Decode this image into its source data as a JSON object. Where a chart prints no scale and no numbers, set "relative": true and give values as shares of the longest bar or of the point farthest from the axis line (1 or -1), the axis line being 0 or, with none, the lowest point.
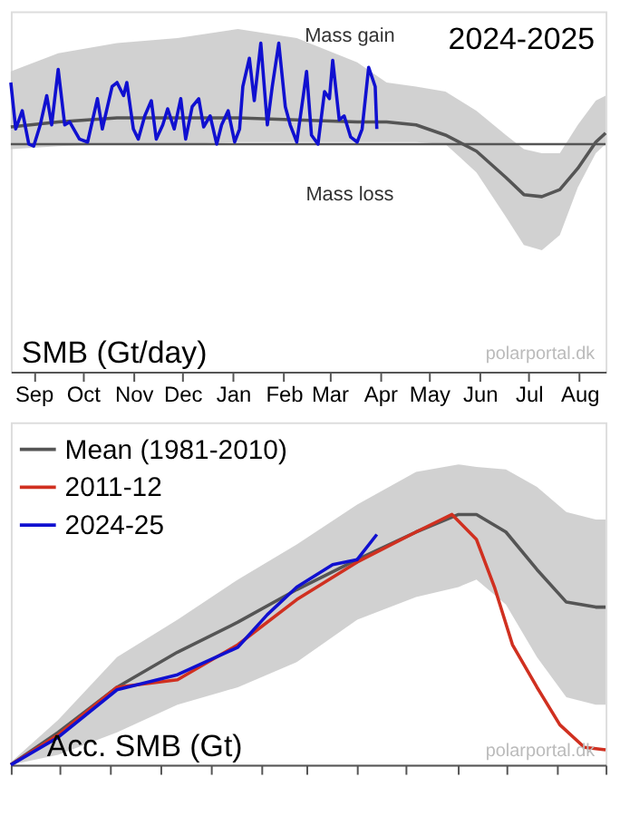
{
  "chart_data": [
    {
      "type": "line",
      "relative": true,
      "xlim": [
        "2024-09-01",
        "2025-08-31"
      ],
      "xticks": [
        {
          "value": "2024-09-15",
          "label": "Sep"
        },
        {
          "value": "2024-10-15",
          "label": "Oct"
        },
        {
          "value": "2024-11-15",
          "label": "Nov"
        },
        {
          "value": "2024-12-15",
          "label": "Dec"
        },
        {
          "value": "2025-01-15",
          "label": "Jan"
        },
        {
          "value": "2025-02-15",
          "label": "Feb"
        },
        {
          "value": "2025-03-15",
          "label": "Mar"
        },
        {
          "value": "2025-04-15",
          "label": "Apr"
        },
        {
          "value": "2025-05-15",
          "label": "May"
        },
        {
          "value": "2025-06-15",
          "label": "Jun"
        },
        {
          "value": "2025-07-15",
          "label": "Jul"
        },
        {
          "value": "2025-08-15",
          "label": "Aug"
        }
      ],
      "tick_labels": "x",
      "grid": false,
      "legend": false,
      "annotations": [
        "Mass gain",
        "Mass loss",
        "2024-2025",
        "SMB (Gt/day)",
        "polarportal.dk"
      ],
      "series": [
        {
          "color": "#555555",
          "x": [
            "2024-09-01",
            "2024-09-30",
            "2024-11-05",
            "2024-12-12",
            "2025-01-18",
            "2025-02-23",
            "2025-04-01",
            "2025-04-19",
            "2025-05-07",
            "2025-05-25",
            "2025-06-13",
            "2025-07-01",
            "2025-07-12",
            "2025-07-23",
            "2025-08-03",
            "2025-08-14",
            "2025-08-25",
            "2025-08-31"
          ],
          "values": [
            0.17,
            0.22,
            0.26,
            0.26,
            0.26,
            0.24,
            0.22,
            0.22,
            0.19,
            0.09,
            -0.07,
            -0.33,
            -0.5,
            -0.52,
            -0.45,
            -0.24,
            0.02,
            0.11
          ],
          "upper": [
            0.72,
            0.9,
            1.0,
            1.05,
            1.14,
            1.05,
            0.81,
            0.61,
            0.57,
            0.52,
            0.33,
            0.09,
            -0.05,
            -0.09,
            -0.09,
            0.19,
            0.43,
            0.48
          ],
          "lower": [
            -0.05,
            -0.02,
            0,
            0,
            0.02,
            0.02,
            0.02,
            0.02,
            0.02,
            0,
            -0.28,
            -0.72,
            -1.0,
            -1.05,
            -0.9,
            -0.43,
            -0.09,
            0
          ]
        },
        {
          "color": "#1010d0",
          "x": [
            "2024-09-01",
            "2024-09-04",
            "2024-09-08",
            "2024-09-12",
            "2024-09-15",
            "2024-09-19",
            "2024-09-23",
            "2024-09-26",
            "2024-09-30",
            "2024-10-04",
            "2024-10-07",
            "2024-10-13",
            "2024-10-18",
            "2024-10-24",
            "2024-10-27",
            "2024-11-02",
            "2024-11-05",
            "2024-11-09",
            "2024-11-11",
            "2024-11-15",
            "2024-11-18",
            "2024-11-22",
            "2024-11-26",
            "2024-11-29",
            "2024-12-03",
            "2024-12-06",
            "2024-12-10",
            "2024-12-14",
            "2024-12-17",
            "2024-12-21",
            "2024-12-25",
            "2024-12-28",
            "2025-01-01",
            "2025-01-05",
            "2025-01-08",
            "2025-01-12",
            "2025-01-16",
            "2025-01-19",
            "2025-01-21",
            "2025-01-25",
            "2025-01-28",
            "2025-02-01",
            "2025-02-05",
            "2025-02-08",
            "2025-02-12",
            "2025-02-16",
            "2025-02-19",
            "2025-02-23",
            "2025-02-27",
            "2025-03-01",
            "2025-03-04",
            "2025-03-08",
            "2025-03-12",
            "2025-03-15",
            "2025-03-17",
            "2025-03-21",
            "2025-03-24",
            "2025-03-28",
            "2025-04-01",
            "2025-04-04",
            "2025-04-08",
            "2025-04-12",
            "2025-04-13"
          ],
          "values": [
            0.61,
            0.15,
            0.33,
            0,
            -0.02,
            0.19,
            0.48,
            0.19,
            0.74,
            0.19,
            0.22,
            0.05,
            0.02,
            0.45,
            0.15,
            0.57,
            0.61,
            0.48,
            0.61,
            0.15,
            0.05,
            0.28,
            0.43,
            0.05,
            0.19,
            0.35,
            0.15,
            0.45,
            0.05,
            0.37,
            0.45,
            0.17,
            0.28,
            0,
            0.19,
            0.33,
            0.02,
            0.15,
            0.57,
            0.85,
            0.43,
            1,
            0.19,
            0.57,
            1,
            0.37,
            0.19,
            0.02,
            0.48,
            0.72,
            0.09,
            0,
            0.52,
            0.45,
            0.83,
            0.24,
            0.28,
            0.07,
            0.02,
            0.15,
            0.76,
            0.57,
            0.15
          ]
        }
      ]
    },
    {
      "type": "line",
      "relative": true,
      "xlim": [
        "2024-09-01",
        "2025-08-31"
      ],
      "xticks": [
        {
          "value": "2024-09-01",
          "label": null
        },
        {
          "value": "2024-10-01",
          "label": null
        },
        {
          "value": "2024-11-01",
          "label": null
        },
        {
          "value": "2024-12-01",
          "label": null
        },
        {
          "value": "2025-01-01",
          "label": null
        },
        {
          "value": "2025-02-01",
          "label": null
        },
        {
          "value": "2025-03-01",
          "label": null
        },
        {
          "value": "2025-04-01",
          "label": null
        },
        {
          "value": "2025-05-01",
          "label": null
        },
        {
          "value": "2025-06-01",
          "label": null
        },
        {
          "value": "2025-07-01",
          "label": null
        },
        {
          "value": "2025-08-01",
          "label": null
        },
        {
          "value": "2025-08-31",
          "label": null
        }
      ],
      "tick_labels": false,
      "grid": false,
      "legend": "top left",
      "annotations": [
        "Acc. SMB (Gt)",
        "polarportal.dk"
      ],
      "series": [
        {
          "name": "Mean (1981-2010)",
          "color": "#555555",
          "x": [
            "2024-09-01",
            "2024-09-30",
            "2024-11-05",
            "2024-12-12",
            "2025-01-18",
            "2025-02-23",
            "2025-04-01",
            "2025-05-07",
            "2025-06-02",
            "2025-06-13",
            "2025-07-01",
            "2025-07-20",
            "2025-08-07",
            "2025-08-25",
            "2025-08-31"
          ],
          "values": [
            0,
            0.13,
            0.31,
            0.45,
            0.57,
            0.7,
            0.82,
            0.93,
            1.0,
            1.0,
            0.93,
            0.78,
            0.65,
            0.63,
            0.63
          ],
          "upper": [
            0.01,
            0.18,
            0.43,
            0.58,
            0.74,
            0.88,
            1.04,
            1.17,
            1.2,
            1.19,
            1.18,
            1.11,
            1.01,
            0.98,
            0.98
          ],
          "lower": [
            0,
            0.04,
            0.13,
            0.24,
            0.31,
            0.41,
            0.58,
            0.67,
            0.71,
            0.74,
            0.64,
            0.43,
            0.27,
            0.24,
            0.24
          ]
        },
        {
          "name": "2011-12",
          "color": "#d03020",
          "x": [
            "2024-09-01",
            "2024-09-30",
            "2024-11-05",
            "2024-12-12",
            "2025-01-18",
            "2025-02-23",
            "2025-04-01",
            "2025-05-07",
            "2025-05-29",
            "2025-06-13",
            "2025-06-24",
            "2025-07-05",
            "2025-07-20",
            "2025-08-03",
            "2025-08-18",
            "2025-08-31"
          ],
          "values": [
            0,
            0.12,
            0.31,
            0.34,
            0.48,
            0.66,
            0.81,
            0.93,
            1.0,
            0.9,
            0.71,
            0.48,
            0.31,
            0.16,
            0.07,
            0.06
          ]
        },
        {
          "name": "2024-25",
          "color": "#1010d0",
          "x": [
            "2024-09-01",
            "2024-09-30",
            "2024-11-05",
            "2024-12-12",
            "2025-01-18",
            "2025-02-05",
            "2025-02-23",
            "2025-03-17",
            "2025-04-01",
            "2025-04-13"
          ],
          "values": [
            0,
            0.11,
            0.3,
            0.36,
            0.47,
            0.6,
            0.71,
            0.8,
            0.82,
            0.92
          ]
        }
      ]
    }
  ]
}
